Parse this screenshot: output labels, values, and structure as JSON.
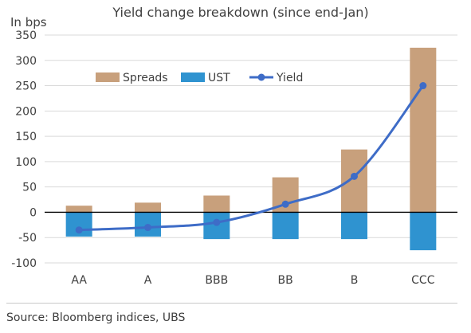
{
  "chart_data": {
    "type": "bar",
    "title": "Yield change breakdown (since end-Jan)",
    "unit_label": "In bps",
    "categories": [
      "AA",
      "A",
      "BBB",
      "BB",
      "B",
      "CCC"
    ],
    "series": [
      {
        "name": "Spreads",
        "kind": "bar",
        "color": "#c8a07c",
        "values": [
          13,
          19,
          33,
          69,
          124,
          325
        ]
      },
      {
        "name": "UST",
        "kind": "bar",
        "color": "#2f93d0",
        "values": [
          -48,
          -48,
          -53,
          -53,
          -53,
          -75
        ]
      },
      {
        "name": "Yield",
        "kind": "line",
        "color": "#3e6cc7",
        "values": [
          -35,
          -30,
          -20,
          16,
          71,
          250
        ]
      }
    ],
    "ylim": [
      -100,
      350
    ],
    "yticks": [
      -100,
      -50,
      0,
      50,
      100,
      150,
      200,
      250,
      300,
      350
    ],
    "grid": true,
    "legend": "top-left"
  },
  "source": "Source: Bloomberg indices, UBS"
}
